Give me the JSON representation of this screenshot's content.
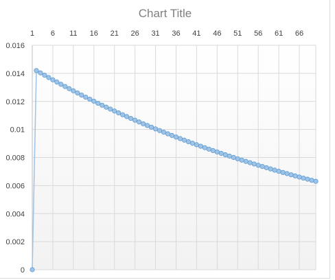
{
  "chart_data": {
    "type": "line",
    "title": "Chart Title",
    "xlabel": "",
    "ylabel": "",
    "x_axis_position": "top",
    "x_tick_labels": [
      "1",
      "6",
      "11",
      "16",
      "21",
      "26",
      "31",
      "36",
      "41",
      "46",
      "51",
      "56",
      "61",
      "66"
    ],
    "x_range": [
      1,
      70
    ],
    "ylim": [
      0,
      0.016
    ],
    "y_tick_labels": [
      "0",
      "0.002",
      "0.004",
      "0.006",
      "0.008",
      "0.01",
      "0.012",
      "0.014",
      "0.016"
    ],
    "grid": true,
    "legend": "none",
    "series": [
      {
        "start": [
          1,
          0
        ],
        "points_x_from": 2,
        "points_x_to": 70,
        "y_first": 0.0142,
        "y_last": 0.0063,
        "shape": "exponential-decay"
      }
    ],
    "colors": {
      "line": "#9dc3e6",
      "marker_fill": "#9dc3e6",
      "marker_stroke": "#5b9bd5",
      "grid": "#d9d9d9",
      "plot_bg_top": "#ffffff",
      "plot_bg_bottom": "#f2f2f2"
    }
  }
}
